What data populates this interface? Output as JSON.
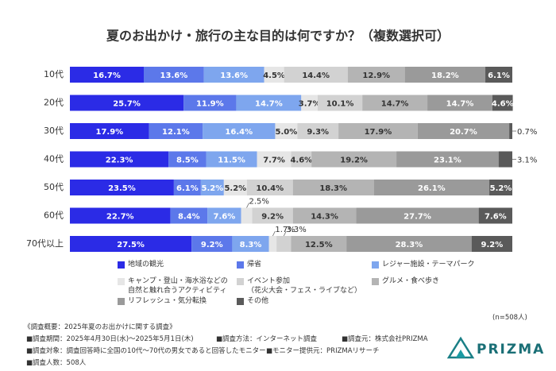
{
  "chart_data": {
    "type": "stacked-bar-horizontal",
    "title": "夏のお出かけ・旅行の主な目的は何ですか？（複数選択可）",
    "categories": [
      "10代",
      "20代",
      "30代",
      "40代",
      "50代",
      "60代",
      "70代以上"
    ],
    "xlim": [
      0,
      100
    ],
    "series": [
      {
        "name": "地域の観光",
        "color": "#2b2be6",
        "values": [
          16.7,
          25.7,
          17.9,
          22.3,
          23.5,
          22.7,
          27.5
        ],
        "value_labels": [
          "16.7%",
          "25.7%",
          "17.9%",
          "22.3%",
          "23.5%",
          "22.7%",
          "27.5%"
        ]
      },
      {
        "name": "帰省",
        "color": "#5c78ea",
        "values": [
          13.6,
          11.9,
          12.1,
          8.5,
          6.1,
          8.4,
          9.2
        ],
        "value_labels": [
          "13.6%",
          "11.9%",
          "12.1%",
          "8.5%",
          "6.1%",
          "8.4%",
          "9.2%"
        ]
      },
      {
        "name": "レジャー施設・テーマパーク",
        "color": "#7ea6ee",
        "values": [
          13.6,
          14.7,
          16.4,
          11.5,
          5.2,
          7.6,
          8.3
        ],
        "value_labels": [
          "13.6%",
          "14.7%",
          "16.4%",
          "11.5%",
          "5.2%",
          "7.6%",
          "8.3%"
        ]
      },
      {
        "name": "キャンプ・登山・海水浴などの\n自然と触れ合うアクティビティ",
        "color": "#e6e6e6",
        "values": [
          4.5,
          3.7,
          5.0,
          7.7,
          5.2,
          2.5,
          1.7
        ],
        "value_labels": [
          "4.5%",
          "3.7%",
          "5.0%",
          "7.7%",
          "5.2%",
          "2.5%",
          "1.7%"
        ]
      },
      {
        "name": "イベント参加\n（花火大会・フェス・ライブなど）",
        "color": "#d2d2d2",
        "values": [
          14.4,
          10.1,
          9.3,
          4.6,
          10.4,
          9.2,
          3.3
        ],
        "value_labels": [
          "14.4%",
          "10.1%",
          "9.3%",
          "4.6%",
          "10.4%",
          "9.2%",
          "3.3%"
        ]
      },
      {
        "name": "グルメ・食べ歩き",
        "color": "#b4b4b4",
        "values": [
          12.9,
          14.7,
          17.9,
          19.2,
          18.3,
          14.3,
          12.5
        ],
        "value_labels": [
          "12.9%",
          "14.7%",
          "17.9%",
          "19.2%",
          "18.3%",
          "14.3%",
          "12.5%"
        ]
      },
      {
        "name": "リフレッシュ・気分転換",
        "color": "#9a9a9a",
        "values": [
          18.2,
          14.7,
          20.7,
          23.1,
          26.1,
          27.7,
          28.3
        ],
        "value_labels": [
          "18.2%",
          "14.7%",
          "20.7%",
          "23.1%",
          "26.1%",
          "27.7%",
          "28.3%"
        ]
      },
      {
        "name": "その他",
        "color": "#5a5a5a",
        "values": [
          6.1,
          4.6,
          0.7,
          3.1,
          5.2,
          7.6,
          9.2
        ],
        "value_labels": [
          "6.1%",
          "4.6%",
          "0.7%",
          "3.1%",
          "5.2%",
          "7.6%",
          "9.2%"
        ]
      }
    ],
    "note": "(n=508人)"
  },
  "survey": {
    "heading": "《調査概要：2025年夏のお出かけに関する調査》",
    "period": "■調査期間：2025年4月30日(水)～2025年5月1日(木)",
    "method": "■調査方法：インターネット調査",
    "source": "■調査元：株式会社PRIZMA",
    "target": "■調査対象：調査回答時に全国の10代～70代の男女であると回答したモニター",
    "provider": "■モニター提供元：PRIZMAリサーチ",
    "count": "■調査人数：508人"
  },
  "logo": "PRIZMA"
}
